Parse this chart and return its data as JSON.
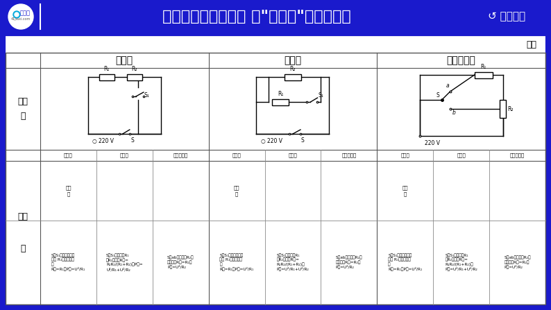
{
  "bg_color": "#1a1acc",
  "header_bg": "#1a1acc",
  "white": "#ffffff",
  "black": "#000000",
  "title_text": "动态电路分析与计算 四\"多挡位\"电热器问题",
  "return_text": "↺ 返回目录",
  "subtitle_text": "续表",
  "col_headers": [
    "短路式",
    "并联式",
    "单刀双掷式"
  ],
  "row1_label": "电路\n图",
  "row2_label": "高温\n\n挡",
  "sub_cols": [
    "短路式",
    "并联式",
    "单刀双掷式"
  ],
  "cell_descs": [
    [
      "S、S₁都闭合，只有\n高温 R₁接入电路，\n挡\nR总=R₁，P高=U²/R₁",
      "S、S₁都闭合，R₁\n与R₂并联，R总=\nR₁R₂/(R₁+R₂)，P高=\nU²/R₁+U²/R₂",
      "S拨ab端，只有R₂接\n入电路，R总=R₂，\nP高=U²/R₂"
    ],
    [
      "S、S₁都闭合，只有\n高温 R₁接入电路，\n挡\nR总=R₁，P高=U²/R₁",
      "S、S₁都闭合，R₁\n与R₂并联，R总=\nR₁R₂/(R₁+R₂)，\nP高=U²/R₁+U²/R₂",
      "S拨ab端，只有R₂接\n入电路，R总=R₂，\nP高=U²/R₂"
    ],
    [
      "S、S₁都闭合，只有\n高温 R₁接入电路，\n挡\nR总=R₁，P高=U²/R₁",
      "S、S₁都闭合，R₁\n与R₂并联，R总=\nR₁R₂/(R₁+R₂)，\nP高=U²/R₁+U²/R₂",
      "S拨ab端，只有R₂接\n入电路，R总=R₂，\nP高=U²/R₂"
    ]
  ]
}
